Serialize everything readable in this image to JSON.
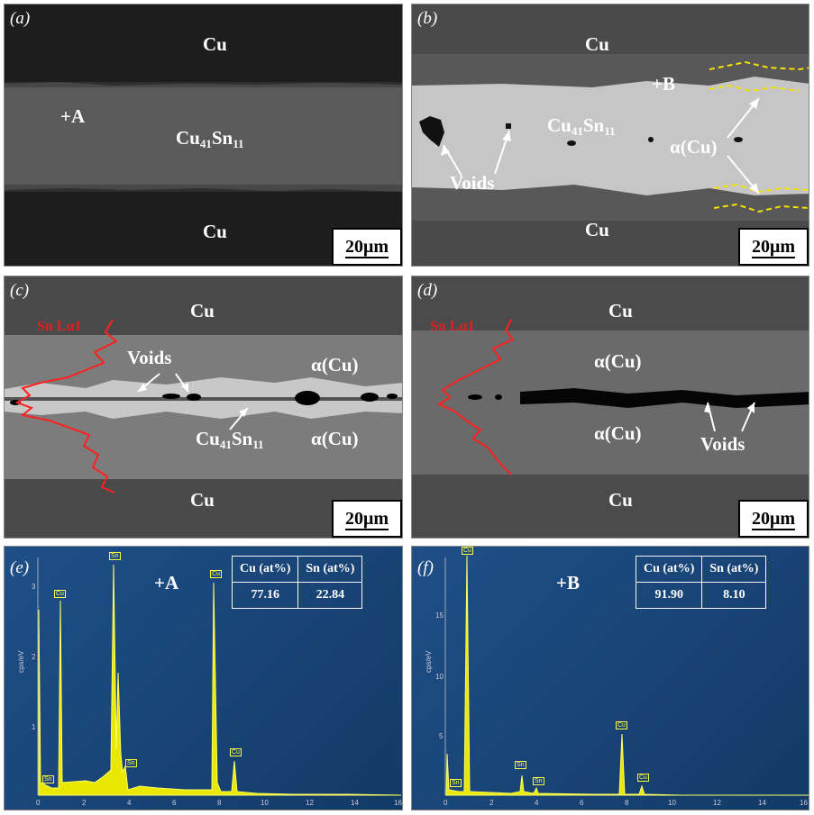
{
  "panels": {
    "a": {
      "tag": "(a)",
      "top": "Cu",
      "bottom": "Cu",
      "mid": "Cu",
      "mid_sub1": "41",
      "mid_sn": "Sn",
      "mid_sub2": "11",
      "point": "+A",
      "scale": "20μm"
    },
    "b": {
      "tag": "(b)",
      "top": "Cu",
      "bottom": "Cu",
      "mid": "Cu",
      "mid_sub1": "41",
      "mid_sn": "Sn",
      "mid_sub2": "11",
      "point": "+B",
      "voids": "Voids",
      "alpha": "α(Cu)",
      "scale": "20μm"
    },
    "c": {
      "tag": "(c)",
      "top": "Cu",
      "bottom": "Cu",
      "linescan": "Sn Lα1",
      "voids": "Voids",
      "alpha_top": "α(Cu)",
      "alpha_bottom": "α(Cu)",
      "mid": "Cu",
      "mid_sub1": "41",
      "mid_sn": "Sn",
      "mid_sub2": "11",
      "scale": "20μm"
    },
    "d": {
      "tag": "(d)",
      "top": "Cu",
      "bottom": "Cu",
      "linescan": "Sn Lα1",
      "alpha_top": "α(Cu)",
      "alpha_bottom": "α(Cu)",
      "voids": "Voids",
      "scale": "20μm"
    },
    "e": {
      "tag": "(e)",
      "point": "+A",
      "table_headers": [
        "Cu (at%)",
        "Sn (at%)"
      ],
      "table_values": [
        "77.16",
        "22.84"
      ],
      "ylabel": "cps/eV",
      "yticks": [
        "1",
        "2",
        "3"
      ],
      "xticks": [
        "0",
        "2",
        "4",
        "6",
        "8",
        "10",
        "12",
        "14",
        "16"
      ],
      "peaks": [
        "Sn",
        "Cu",
        "Sn",
        "Sn",
        "Cu",
        "Cu"
      ]
    },
    "f": {
      "tag": "(f)",
      "point": "+B",
      "table_headers": [
        "Cu (at%)",
        "Sn (at%)"
      ],
      "table_values": [
        "91.90",
        "8.10"
      ],
      "ylabel": "cps/eV",
      "yticks": [
        "5",
        "10",
        "15"
      ],
      "xticks": [
        "0",
        "2",
        "4",
        "6",
        "8",
        "10",
        "12",
        "14",
        "16"
      ],
      "peaks": [
        "Sn",
        "Cu",
        "Sn",
        "Sn",
        "Cu",
        "Cu"
      ]
    }
  }
}
